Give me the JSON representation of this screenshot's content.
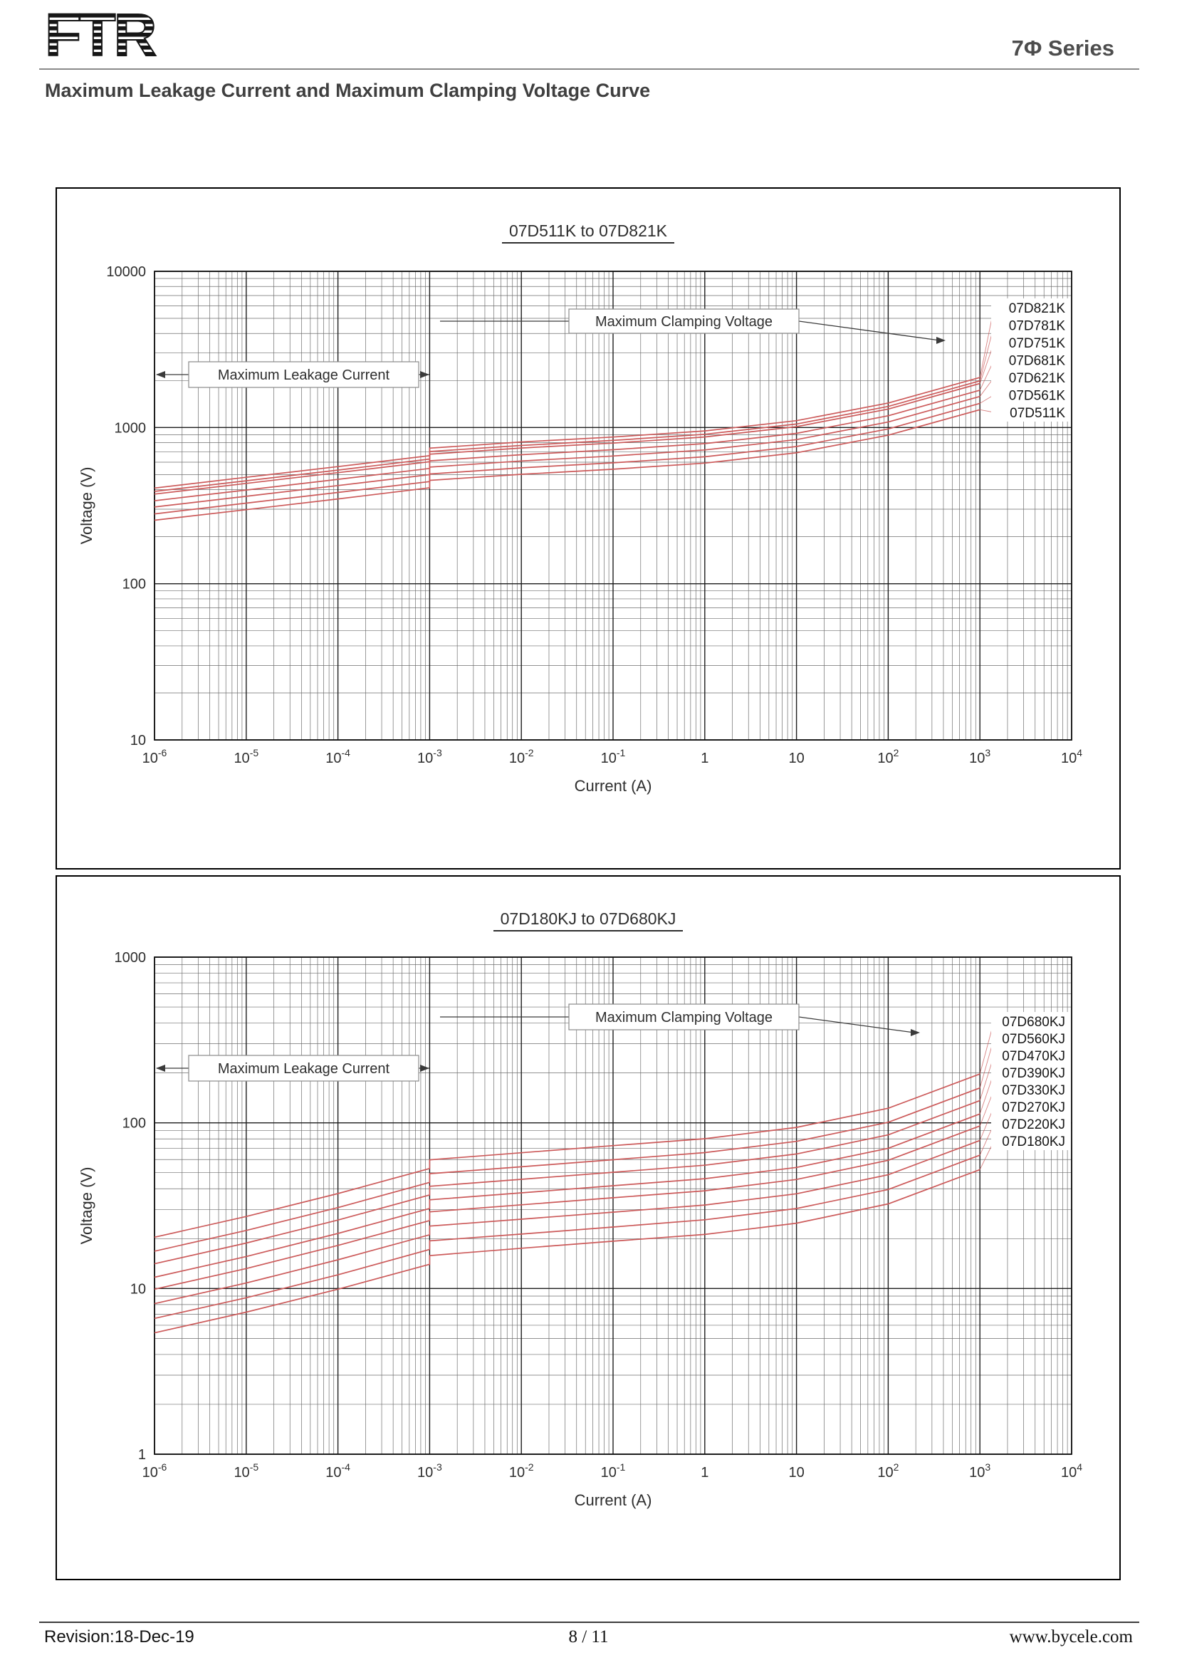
{
  "header": {
    "logo_text": "FTR",
    "series_label": "7Φ Series"
  },
  "page_heading": "Maximum Leakage Current and Maximum Clamping Voltage Curve",
  "footer": {
    "revision": "Revision:18-Dec-19",
    "page": "8 / 11",
    "website": "www.bycele.com"
  },
  "colors": {
    "curve": "#cc5a5a",
    "grid_major": "#1c1c1c",
    "grid_minor": "#6e6e6e",
    "text": "#2e2e2e",
    "annotation_line": "#3a3a3a"
  },
  "chart_data": [
    {
      "type": "line",
      "title": "07D511K to 07D821K",
      "xlabel": "Current (A)",
      "ylabel": "Voltage (V)",
      "x_log_range": [
        -6,
        4
      ],
      "y_log_range": [
        1,
        4
      ],
      "x_ticks": [
        -6,
        -5,
        -4,
        -3,
        -2,
        -1,
        0,
        1,
        2,
        3,
        4
      ],
      "y_ticks": [
        1,
        2,
        3,
        4
      ],
      "annotations": {
        "clamping": "Maximum Clamping Voltage",
        "leakage": "Maximum Leakage Current"
      },
      "series": [
        {
          "name": "07D821K",
          "points": [
            [
              1e-06,
              410
            ],
            [
              1e-05,
              480
            ],
            [
              0.0001,
              562
            ],
            [
              0.001,
              660
            ],
            [
              0.001,
              738
            ],
            [
              0.01,
              808
            ],
            [
              0.1,
              869
            ],
            [
              1,
              951
            ],
            [
              10,
              1107
            ],
            [
              100,
              1435
            ],
            [
              1000,
              2091
            ]
          ]
        },
        {
          "name": "07D781K",
          "points": [
            [
              1e-06,
              390
            ],
            [
              1e-05,
              456
            ],
            [
              0.0001,
              534
            ],
            [
              0.001,
              628
            ],
            [
              0.001,
              702
            ],
            [
              0.01,
              768
            ],
            [
              0.1,
              827
            ],
            [
              1,
              905
            ],
            [
              10,
              1053
            ],
            [
              100,
              1365
            ],
            [
              1000,
              1989
            ]
          ]
        },
        {
          "name": "07D751K",
          "points": [
            [
              1e-06,
              375
            ],
            [
              1e-05,
              439
            ],
            [
              0.0001,
              514
            ],
            [
              0.001,
              604
            ],
            [
              0.001,
              675
            ],
            [
              0.01,
              739
            ],
            [
              0.1,
              795
            ],
            [
              1,
              870
            ],
            [
              10,
              1013
            ],
            [
              100,
              1313
            ],
            [
              1000,
              1913
            ]
          ]
        },
        {
          "name": "07D681K",
          "points": [
            [
              1e-06,
              340
            ],
            [
              1e-05,
              398
            ],
            [
              0.0001,
              466
            ],
            [
              0.001,
              547
            ],
            [
              0.001,
              612
            ],
            [
              0.01,
              670
            ],
            [
              0.1,
              721
            ],
            [
              1,
              789
            ],
            [
              10,
              918
            ],
            [
              100,
              1190
            ],
            [
              1000,
              1734
            ]
          ]
        },
        {
          "name": "07D621K",
          "points": [
            [
              1e-06,
              310
            ],
            [
              1e-05,
              363
            ],
            [
              0.0001,
              425
            ],
            [
              0.001,
              499
            ],
            [
              0.001,
              558
            ],
            [
              0.01,
              611
            ],
            [
              0.1,
              657
            ],
            [
              1,
              719
            ],
            [
              10,
              837
            ],
            [
              100,
              1085
            ],
            [
              1000,
              1581
            ]
          ]
        },
        {
          "name": "07D561K",
          "points": [
            [
              1e-06,
              280
            ],
            [
              1e-05,
              328
            ],
            [
              0.0001,
              384
            ],
            [
              0.001,
              451
            ],
            [
              0.001,
              504
            ],
            [
              0.01,
              552
            ],
            [
              0.1,
              594
            ],
            [
              1,
              650
            ],
            [
              10,
              756
            ],
            [
              100,
              980
            ],
            [
              1000,
              1428
            ]
          ]
        },
        {
          "name": "07D511K",
          "points": [
            [
              1e-06,
              255
            ],
            [
              1e-05,
              298
            ],
            [
              0.0001,
              349
            ],
            [
              0.001,
              411
            ],
            [
              0.001,
              459
            ],
            [
              0.01,
              502
            ],
            [
              0.1,
              541
            ],
            [
              1,
              592
            ],
            [
              10,
              689
            ],
            [
              100,
              893
            ],
            [
              1000,
              1301
            ]
          ]
        }
      ]
    },
    {
      "type": "line",
      "title": "07D180KJ to 07D680KJ",
      "xlabel": "Current (A)",
      "ylabel": "Voltage (V)",
      "x_log_range": [
        -6,
        4
      ],
      "y_log_range": [
        0,
        3
      ],
      "x_ticks": [
        -6,
        -5,
        -4,
        -3,
        -2,
        -1,
        0,
        1,
        2,
        3,
        4
      ],
      "y_ticks": [
        0,
        1,
        2,
        3
      ],
      "annotations": {
        "clamping": "Maximum Clamping Voltage",
        "leakage": "Maximum Leakage Current"
      },
      "series": [
        {
          "name": "07D680KJ",
          "points": [
            [
              1e-06,
              20.4
            ],
            [
              1e-05,
              27.2
            ],
            [
              0.0001,
              37.4
            ],
            [
              0.001,
              53.0
            ],
            [
              0.001,
              59.8
            ],
            [
              0.01,
              66.0
            ],
            [
              0.1,
              72.8
            ],
            [
              1,
              80.2
            ],
            [
              10,
              93.8
            ],
            [
              100,
              122.4
            ],
            [
              1000,
              197.2
            ]
          ]
        },
        {
          "name": "07D560KJ",
          "points": [
            [
              1e-06,
              16.8
            ],
            [
              1e-05,
              22.4
            ],
            [
              0.0001,
              30.8
            ],
            [
              0.001,
              43.7
            ],
            [
              0.001,
              49.3
            ],
            [
              0.01,
              54.3
            ],
            [
              0.1,
              59.9
            ],
            [
              1,
              66.1
            ],
            [
              10,
              77.3
            ],
            [
              100,
              100.8
            ],
            [
              1000,
              162.4
            ]
          ]
        },
        {
          "name": "07D470KJ",
          "points": [
            [
              1e-06,
              14.1
            ],
            [
              1e-05,
              18.8
            ],
            [
              0.0001,
              25.9
            ],
            [
              0.001,
              36.7
            ],
            [
              0.001,
              41.4
            ],
            [
              0.01,
              45.6
            ],
            [
              0.1,
              50.3
            ],
            [
              1,
              55.5
            ],
            [
              10,
              64.9
            ],
            [
              100,
              84.6
            ],
            [
              1000,
              136.3
            ]
          ]
        },
        {
          "name": "07D390KJ",
          "points": [
            [
              1e-06,
              11.7
            ],
            [
              1e-05,
              15.6
            ],
            [
              0.0001,
              21.5
            ],
            [
              0.001,
              30.4
            ],
            [
              0.001,
              34.3
            ],
            [
              0.01,
              37.8
            ],
            [
              0.1,
              41.7
            ],
            [
              1,
              46.0
            ],
            [
              10,
              53.8
            ],
            [
              100,
              70.2
            ],
            [
              1000,
              113.1
            ]
          ]
        },
        {
          "name": "07D330KJ",
          "points": [
            [
              1e-06,
              9.9
            ],
            [
              1e-05,
              13.2
            ],
            [
              0.0001,
              18.2
            ],
            [
              0.001,
              25.7
            ],
            [
              0.001,
              29.0
            ],
            [
              0.01,
              32.0
            ],
            [
              0.1,
              35.3
            ],
            [
              1,
              38.9
            ],
            [
              10,
              45.5
            ],
            [
              100,
              59.4
            ],
            [
              1000,
              95.7
            ]
          ]
        },
        {
          "name": "07D270KJ",
          "points": [
            [
              1e-06,
              8.1
            ],
            [
              1e-05,
              10.8
            ],
            [
              0.0001,
              14.9
            ],
            [
              0.001,
              21.1
            ],
            [
              0.001,
              23.8
            ],
            [
              0.01,
              26.2
            ],
            [
              0.1,
              28.9
            ],
            [
              1,
              31.9
            ],
            [
              10,
              37.3
            ],
            [
              100,
              48.6
            ],
            [
              1000,
              78.3
            ]
          ]
        },
        {
          "name": "07D220KJ",
          "points": [
            [
              1e-06,
              6.6
            ],
            [
              1e-05,
              8.8
            ],
            [
              0.0001,
              12.1
            ],
            [
              0.001,
              17.2
            ],
            [
              0.001,
              19.4
            ],
            [
              0.01,
              21.3
            ],
            [
              0.1,
              23.5
            ],
            [
              1,
              26.0
            ],
            [
              10,
              30.4
            ],
            [
              100,
              39.6
            ],
            [
              1000,
              63.8
            ]
          ]
        },
        {
          "name": "07D180KJ",
          "points": [
            [
              1e-06,
              5.4
            ],
            [
              1e-05,
              7.2
            ],
            [
              0.0001,
              9.9
            ],
            [
              0.001,
              14.0
            ],
            [
              0.001,
              15.8
            ],
            [
              0.01,
              17.5
            ],
            [
              0.1,
              19.3
            ],
            [
              1,
              21.2
            ],
            [
              10,
              24.8
            ],
            [
              100,
              32.4
            ],
            [
              1000,
              52.2
            ]
          ]
        }
      ]
    }
  ]
}
